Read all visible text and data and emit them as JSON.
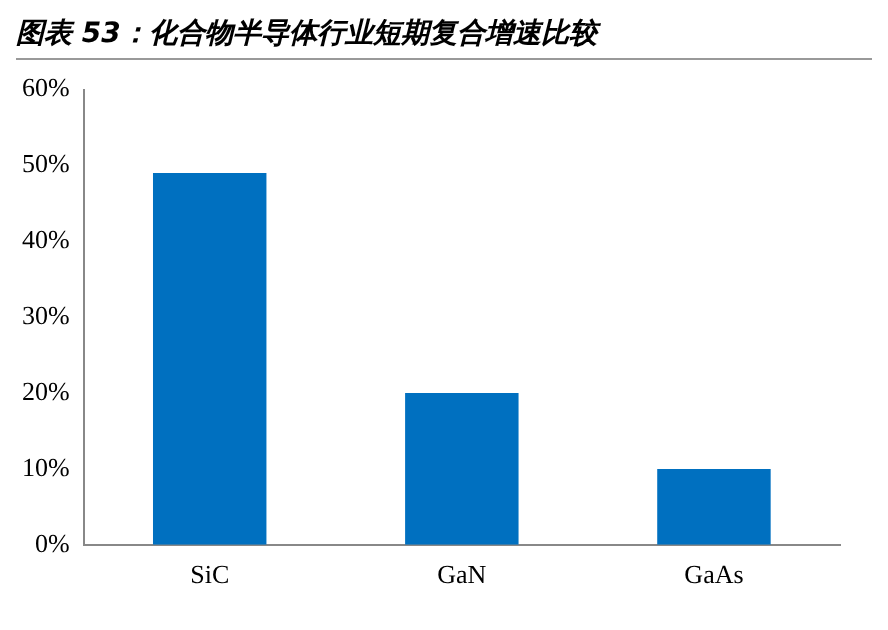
{
  "chart_data": {
    "type": "bar",
    "title": "图表 53：化合物半导体行业短期复合增速比较",
    "categories": [
      "SiC",
      "GaN",
      "GaAs"
    ],
    "values": [
      49,
      20,
      10
    ],
    "color": "#0070c0",
    "ylim": [
      0,
      60
    ],
    "yticks": [
      {
        "value": 0,
        "label": "0%"
      },
      {
        "value": 10,
        "label": "10%"
      },
      {
        "value": 20,
        "label": "20%"
      },
      {
        "value": 30,
        "label": "30%"
      },
      {
        "value": 40,
        "label": "40%"
      },
      {
        "value": 50,
        "label": "50%"
      },
      {
        "value": 60,
        "label": "60%"
      }
    ],
    "grid": false,
    "legend": false
  }
}
